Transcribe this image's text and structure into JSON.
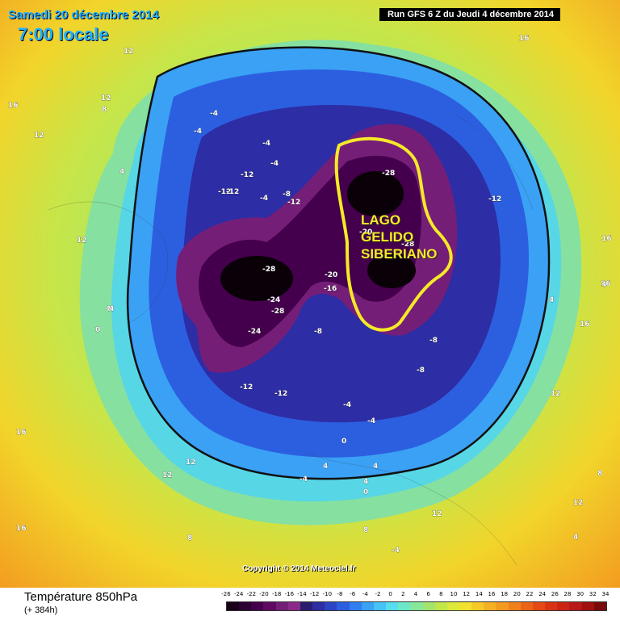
{
  "header": {
    "date": "Samedi 20 décembre 2014",
    "time": "7:00 locale",
    "run": "Run GFS 6 Z du Jeudi 4 décembre 2014"
  },
  "annotation": {
    "line1": "LAGO",
    "line2": "GELIDO",
    "line3": "SIBERIANO",
    "color": "#f5e928"
  },
  "copyright": "Copyright © 2014 Meteociel.fr",
  "legend": {
    "title": "Température 850hPa",
    "subtitle": "(+ 384h)",
    "ticks": [
      "-26",
      "-24",
      "-22",
      "-20",
      "-18",
      "-16",
      "-14",
      "-12",
      "-10",
      "-8",
      "-6",
      "-4",
      "-2",
      "0",
      "2",
      "4",
      "6",
      "8",
      "10",
      "12",
      "14",
      "16",
      "18",
      "20",
      "22",
      "24",
      "26",
      "28",
      "30",
      "32",
      "34"
    ],
    "colors": [
      "#1a0018",
      "#2c0033",
      "#44004c",
      "#5e0a62",
      "#751e78",
      "#8a2a88",
      "#2a1d6e",
      "#2d2da5",
      "#2c44c4",
      "#2c5fe0",
      "#2f7ef0",
      "#3aa1f5",
      "#46c2f5",
      "#57ddf0",
      "#6ce8c8",
      "#86e89a",
      "#a2e46c",
      "#c0e64a",
      "#dde83a",
      "#f2e12e",
      "#f7c928",
      "#f5b024",
      "#f39a20",
      "#ef801c",
      "#ea6418",
      "#e34a16",
      "#d83414",
      "#cc2414",
      "#b81818",
      "#a01010",
      "#7a0a0a"
    ]
  },
  "map_labels": [
    "12",
    "16",
    "12",
    "16",
    "-4",
    "12",
    "8",
    "4",
    "-4",
    "-4",
    "-12",
    "-12",
    "-4",
    "-4",
    "-8",
    "-12",
    "-12",
    "-28",
    "-12",
    "-12",
    "12",
    "-20",
    "-28",
    "-28",
    "-16",
    "-20",
    "-24",
    "-28",
    "-24",
    "-8",
    "4",
    "0",
    "-12",
    "-12",
    "-8",
    "-4",
    "-8",
    "-4",
    "4",
    "0",
    "16",
    "4",
    "12",
    "16",
    "16",
    "16",
    "12",
    "8",
    "12",
    "4",
    "8",
    "12",
    "12",
    "8",
    "-4",
    "0",
    "-4",
    "4",
    "16",
    "4",
    "4",
    "4"
  ]
}
